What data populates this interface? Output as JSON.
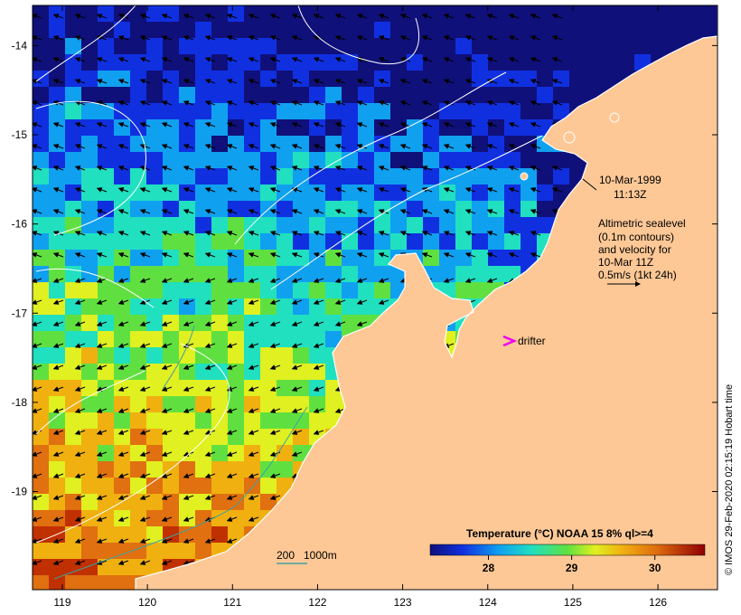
{
  "map": {
    "annotation_date": "10-Mar-1999",
    "annotation_time": "11:13Z",
    "altimetry_lines": [
      "Altimetric sealevel",
      "(0.1m contours)",
      "and velocity for",
      "10-Mar 11Z",
      "0.5m/s (1kt 24h)"
    ],
    "drifter_label": "drifter",
    "depth_legend_200": "200",
    "depth_legend_1000": "1000m",
    "colorbar_title": "Temperature (°C) NOAA 15 8% ql>=4",
    "colorbar_ticks": [
      {
        "value": 28,
        "label": "28"
      },
      {
        "value": 29,
        "label": "29"
      },
      {
        "value": 30,
        "label": "30"
      }
    ],
    "colorbar_range": [
      27.3,
      30.6
    ],
    "credit": "© IMOS 29-Feb-2020 02:15:19 Hobart time",
    "lon_ticks": [
      "119",
      "120",
      "121",
      "122",
      "123",
      "124",
      "125",
      "126"
    ],
    "lat_ticks": [
      "-14",
      "-15",
      "-16",
      "-17",
      "-18",
      "-19"
    ],
    "lon_range": [
      118.65,
      126.7
    ],
    "lat_range": [
      -20.1,
      -13.55
    ],
    "colors": {
      "land": "#fdc896",
      "coast": "#ffffff",
      "arrow": "#000000",
      "drifter": "#ee00ee",
      "contour": "#ffffff",
      "isobath_200": "#40a0a0"
    }
  }
}
